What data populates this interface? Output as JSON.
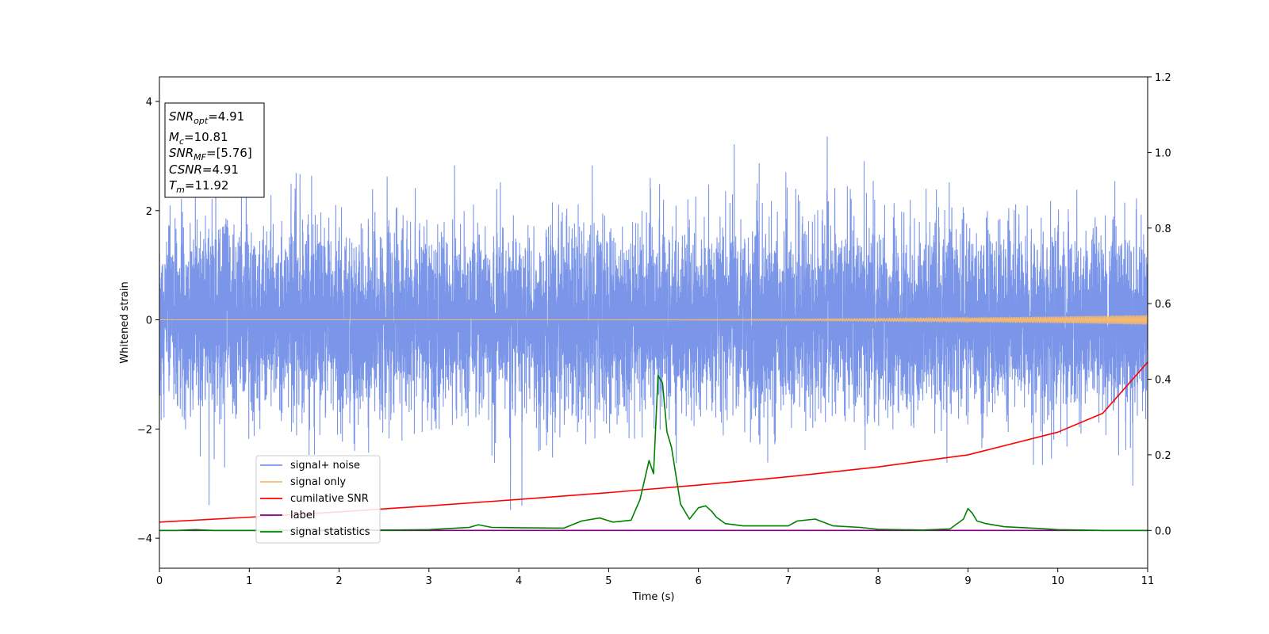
{
  "chart_data": {
    "type": "line",
    "xlabel": "Time (s)",
    "ylabel_left": "Whitened strain",
    "ylabel_right": "",
    "xlim": [
      0,
      11
    ],
    "ylim_left": [
      -4.55,
      4.45
    ],
    "ylim_right": [
      -0.1,
      1.2
    ],
    "x_ticks": [
      0,
      1,
      2,
      3,
      4,
      5,
      6,
      7,
      8,
      9,
      10,
      11
    ],
    "y_left_ticks": [
      -4,
      -2,
      0,
      2,
      4
    ],
    "y_right_ticks": [
      0.0,
      0.2,
      0.4,
      0.6,
      0.8,
      1.0,
      1.2
    ],
    "grid": false,
    "legend_placement": "lower-left",
    "info_box": {
      "snr_opt": "=4.91",
      "mc": "=10.81",
      "snr_mf": "=[5.76]",
      "csnr": "=4.91",
      "tm": "=11.92"
    },
    "series": [
      {
        "name": "signal+ noise",
        "color": "#7b96e8",
        "axis": "left",
        "kind": "noise",
        "sigma": 0.85,
        "envelope_max": 4.05,
        "envelope_min": -4.15
      },
      {
        "name": "signal only",
        "color": "#f5b971",
        "axis": "left",
        "kind": "chirp",
        "amplitude_start": 0.0,
        "amplitude_end": 0.09
      },
      {
        "name": "cumilative SNR",
        "color": "#ff0000",
        "axis": "right",
        "x": [
          0,
          1,
          2,
          3,
          4,
          5,
          6,
          7,
          8,
          9,
          10,
          10.5,
          11
        ],
        "y": [
          0.022,
          0.035,
          0.049,
          0.065,
          0.082,
          0.1,
          0.12,
          0.142,
          0.168,
          0.2,
          0.26,
          0.31,
          0.445
        ]
      },
      {
        "name": "label",
        "color": "#800080",
        "axis": "right",
        "x": [
          0,
          11
        ],
        "y": [
          0.0,
          0.0
        ]
      },
      {
        "name": "signal statistics",
        "color": "#008000",
        "axis": "right",
        "x": [
          0,
          0.2,
          0.4,
          0.6,
          1.0,
          2.0,
          2.5,
          3.0,
          3.3,
          3.45,
          3.55,
          3.7,
          4.0,
          4.5,
          4.7,
          4.9,
          5.05,
          5.25,
          5.35,
          5.45,
          5.5,
          5.55,
          5.6,
          5.65,
          5.7,
          5.8,
          5.9,
          6.0,
          6.08,
          6.15,
          6.2,
          6.3,
          6.5,
          7.0,
          7.1,
          7.3,
          7.5,
          7.8,
          8.0,
          8.5,
          8.8,
          8.95,
          9.0,
          9.05,
          9.1,
          9.2,
          9.4,
          9.8,
          10.0,
          10.5,
          11
        ],
        "y": [
          0.0,
          0.0,
          0.002,
          0.0,
          0.0,
          0.001,
          0.001,
          0.002,
          0.006,
          0.008,
          0.015,
          0.008,
          0.007,
          0.006,
          0.025,
          0.033,
          0.022,
          0.027,
          0.082,
          0.185,
          0.15,
          0.41,
          0.39,
          0.26,
          0.22,
          0.07,
          0.03,
          0.06,
          0.065,
          0.05,
          0.035,
          0.018,
          0.012,
          0.012,
          0.025,
          0.03,
          0.012,
          0.008,
          0.003,
          0.001,
          0.004,
          0.03,
          0.058,
          0.045,
          0.025,
          0.018,
          0.01,
          0.005,
          0.002,
          0.0,
          0.0
        ]
      }
    ]
  }
}
